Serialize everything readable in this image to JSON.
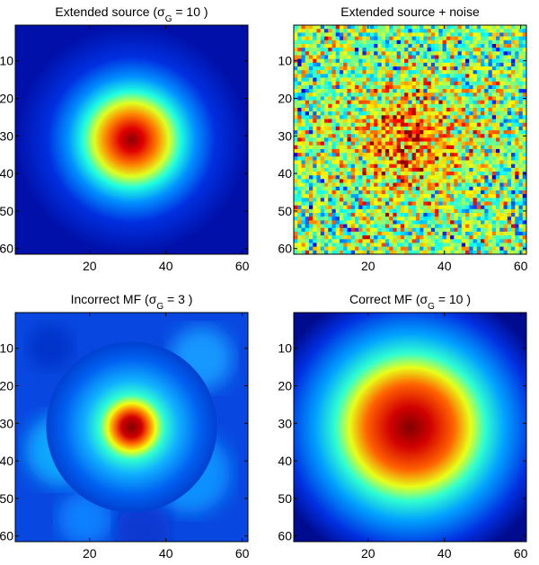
{
  "chart_data": [
    {
      "type": "heatmap",
      "colormap": "jet",
      "title_parts": [
        "Extended source (σ",
        "G",
        " = 10 )"
      ],
      "xlim": [
        0.5,
        61.5
      ],
      "ylim": [
        0.5,
        61.5
      ],
      "xticks": [
        20,
        40,
        60
      ],
      "yticks": [
        10,
        20,
        30,
        40,
        50,
        60
      ]
    },
    {
      "type": "heatmap",
      "colormap": "jet",
      "title_parts": [
        "Extended source + noise"
      ],
      "xlim": [
        0.5,
        61.5
      ],
      "ylim": [
        0.5,
        61.5
      ],
      "xticks": [
        20,
        40,
        60
      ],
      "yticks": [
        10,
        20,
        30,
        40,
        50,
        60
      ]
    },
    {
      "type": "heatmap",
      "colormap": "jet",
      "title_parts": [
        "Incorrect MF (σ",
        "G",
        " = 3 )"
      ],
      "xlim": [
        0.5,
        61.5
      ],
      "ylim": [
        0.5,
        61.5
      ],
      "xticks": [
        20,
        40,
        60
      ],
      "yticks": [
        10,
        20,
        30,
        40,
        50,
        60
      ]
    },
    {
      "type": "heatmap",
      "colormap": "jet",
      "title_parts": [
        "Correct MF (σ",
        "G",
        " = 10 )"
      ],
      "xlim": [
        0.5,
        61.5
      ],
      "ylim": [
        0.5,
        61.5
      ],
      "xticks": [
        20,
        40,
        60
      ],
      "yticks": [
        10,
        20,
        30,
        40,
        50,
        60
      ]
    }
  ]
}
